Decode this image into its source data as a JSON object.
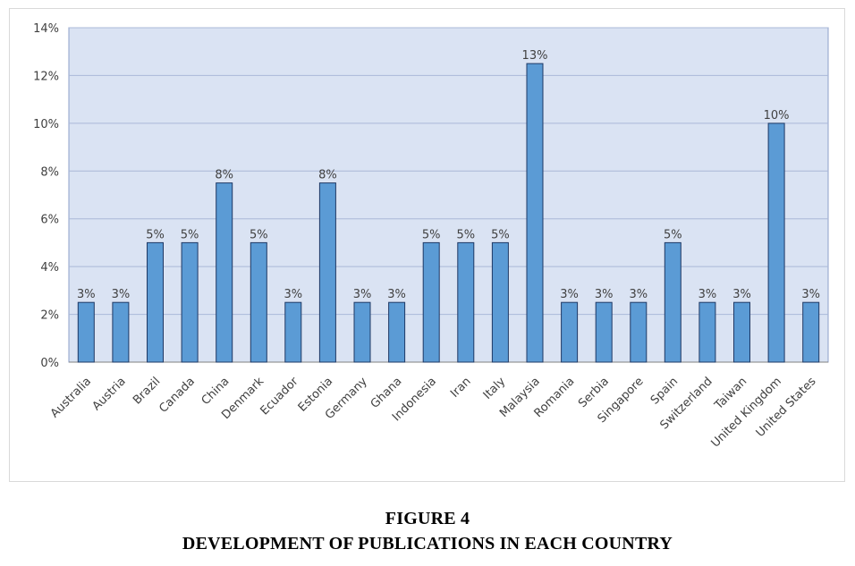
{
  "chart_data": {
    "type": "bar",
    "categories": [
      "Australia",
      "Austria",
      "Brazil",
      "Canada",
      "China",
      "Denmark",
      "Ecuador",
      "Estonia",
      "Germany",
      "Ghana",
      "Indonesia",
      "Iran",
      "Italy",
      "Malaysia",
      "Romania",
      "Serbia",
      "Singapore",
      "Spain",
      "Switzerland",
      "Taiwan",
      "United Kingdom",
      "United States"
    ],
    "values": [
      2.5,
      2.5,
      5,
      5,
      7.5,
      5,
      2.5,
      7.5,
      2.5,
      2.5,
      5,
      5,
      5,
      12.5,
      2.5,
      2.5,
      2.5,
      5,
      2.5,
      2.5,
      10,
      2.5
    ],
    "data_labels": [
      "3%",
      "3%",
      "5%",
      "5%",
      "8%",
      "5%",
      "3%",
      "8%",
      "3%",
      "3%",
      "5%",
      "5%",
      "5%",
      "13%",
      "3%",
      "3%",
      "3%",
      "5%",
      "3%",
      "3%",
      "10%",
      "3%"
    ],
    "y_ticks": [
      "0%",
      "2%",
      "4%",
      "6%",
      "8%",
      "10%",
      "12%",
      "14%"
    ],
    "ylim": [
      0,
      14
    ],
    "grid": true,
    "title": "",
    "xlabel": "",
    "ylabel": "",
    "colors": {
      "bar_fill": "#5b9bd5",
      "bar_stroke": "#1f3864",
      "plot_background": "#dae3f3",
      "gridline": "#aab8d8"
    }
  },
  "caption": {
    "figure_number": "FIGURE 4",
    "title": "DEVELOPMENT OF PUBLICATIONS IN EACH COUNTRY"
  }
}
